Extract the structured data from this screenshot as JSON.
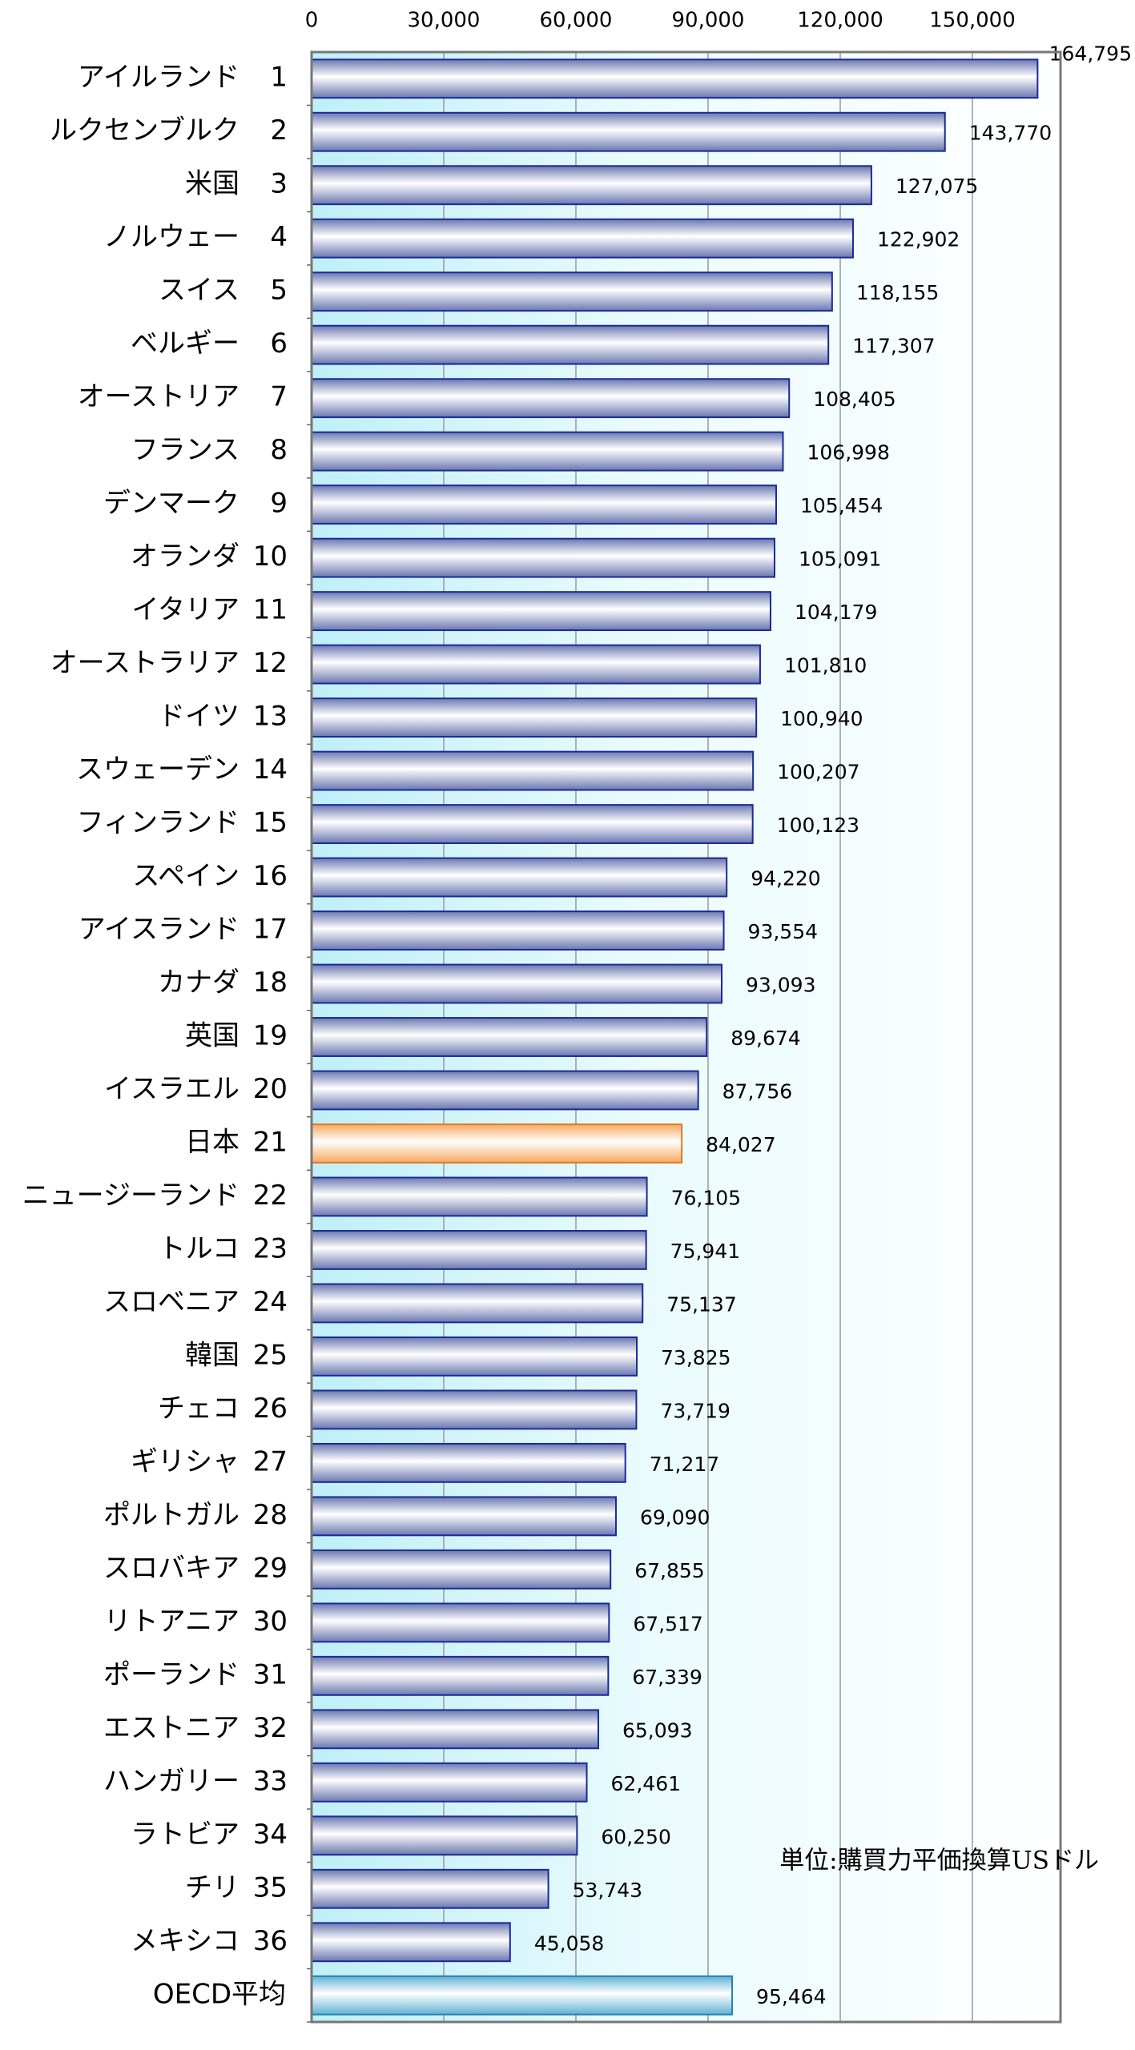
{
  "chart_data": {
    "type": "barh",
    "categories": [
      "アイルランド",
      "ルクセンブルク",
      "米国",
      "ノルウェー",
      "スイス",
      "ベルギー",
      "オーストリア",
      "フランス",
      "デンマーク",
      "オランダ",
      "イタリア",
      "オーストラリア",
      "ドイツ",
      "スウェーデン",
      "フィンランド",
      "スペイン",
      "アイスランド",
      "カナダ",
      "英国",
      "イスラエル",
      "日本",
      "ニュージーランド",
      "トルコ",
      "スロベニア",
      "韓国",
      "チェコ",
      "ギリシャ",
      "ポルトガル",
      "スロバキア",
      "リトアニア",
      "ポーランド",
      "エストニア",
      "ハンガリー",
      "ラトビア",
      "チリ",
      "メキシコ",
      "OECD平均"
    ],
    "ranks": [
      1,
      2,
      3,
      4,
      5,
      6,
      7,
      8,
      9,
      10,
      11,
      12,
      13,
      14,
      15,
      16,
      17,
      18,
      19,
      20,
      21,
      22,
      23,
      24,
      25,
      26,
      27,
      28,
      29,
      30,
      31,
      32,
      33,
      34,
      35,
      36,
      null
    ],
    "values": [
      164795,
      143770,
      127075,
      122902,
      118155,
      117307,
      108405,
      106998,
      105454,
      105091,
      104179,
      101810,
      100940,
      100207,
      100123,
      94220,
      93554,
      93093,
      89674,
      87756,
      84027,
      76105,
      75941,
      75137,
      73825,
      73719,
      71217,
      69090,
      67855,
      67517,
      67339,
      65093,
      62461,
      60250,
      53743,
      45058,
      95464
    ],
    "value_labels": [
      "164,795",
      "143,770",
      "127,075",
      "122,902",
      "118,155",
      "117,307",
      "108,405",
      "106,998",
      "105,454",
      "105,091",
      "104,179",
      "101,810",
      "100,940",
      "100,207",
      "100,123",
      "94,220",
      "93,554",
      "93,093",
      "89,674",
      "87,756",
      "84,027",
      "76,105",
      "75,941",
      "75,137",
      "73,825",
      "73,719",
      "71,217",
      "69,090",
      "67,855",
      "67,517",
      "67,339",
      "65,093",
      "62,461",
      "60,250",
      "53,743",
      "45,058",
      "95,464"
    ],
    "colors": [
      "#6b78b0",
      "#6b78b0",
      "#6b78b0",
      "#6b78b0",
      "#6b78b0",
      "#6b78b0",
      "#6b78b0",
      "#6b78b0",
      "#6b78b0",
      "#6b78b0",
      "#6b78b0",
      "#6b78b0",
      "#6b78b0",
      "#6b78b0",
      "#6b78b0",
      "#6b78b0",
      "#6b78b0",
      "#6b78b0",
      "#6b78b0",
      "#6b78b0",
      "#f7a860",
      "#6b78b0",
      "#6b78b0",
      "#6b78b0",
      "#6b78b0",
      "#6b78b0",
      "#6b78b0",
      "#6b78b0",
      "#6b78b0",
      "#6b78b0",
      "#6b78b0",
      "#6b78b0",
      "#6b78b0",
      "#6b78b0",
      "#6b78b0",
      "#6b78b0",
      "#5fb2d6"
    ],
    "xlim": [
      0,
      170000
    ],
    "xticks": [
      0,
      {
        "value": 30000,
        "label": "30,000"
      },
      {
        "value": 60000,
        "label": "60,000"
      },
      {
        "value": 90000,
        "label": "90,000"
      },
      {
        "value": 120000,
        "label": "120,000"
      },
      {
        "value": 150000,
        "label": "150,000"
      }
    ],
    "grid": true,
    "annotation": "単位:購買力平価換算USドル"
  }
}
